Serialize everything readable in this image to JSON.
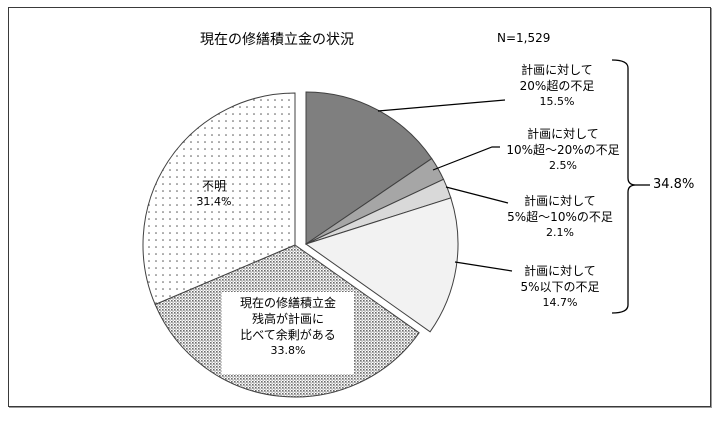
{
  "chart_data": {
    "type": "pie",
    "title": "現在の修繕積立金の状況",
    "sample_size": "N=1,529",
    "slices": [
      {
        "label": "計画に対して20%超の不足",
        "value": 15.5,
        "fill": "#7f7f7f",
        "pattern": "solid",
        "exploded": true
      },
      {
        "label": "計画に対して10%超～20%の不足",
        "value": 2.5,
        "fill": "#a6a6a6",
        "pattern": "solid",
        "exploded": true
      },
      {
        "label": "計画に対して5%超～10%の不足",
        "value": 2.1,
        "fill": "#d9d9d9",
        "pattern": "solid",
        "exploded": true
      },
      {
        "label": "計画に対して5%以下の不足",
        "value": 14.7,
        "fill": "#f2f2f2",
        "pattern": "solid",
        "exploded": true
      },
      {
        "label": "現在の修繕積立金残高が計画に比べて余剰がある",
        "value": 33.8,
        "fill": "#bfbfbf",
        "pattern": "dense-dots",
        "exploded": false
      },
      {
        "label": "不明",
        "value": 31.4,
        "fill": "#ffffff",
        "pattern": "sparse-dots",
        "exploded": false
      }
    ],
    "group_annotation": {
      "label": "34.8%",
      "covers": [
        "計画に対して20%超の不足",
        "計画に対して10%超～20%の不足",
        "計画に対して5%超～10%の不足",
        "計画に対して5%以下の不足"
      ]
    }
  },
  "header": {
    "title": "現在の修繕積立金の状況",
    "n": "N=1,529"
  },
  "labels": {
    "s1": {
      "line1": "計画に対して",
      "line2": "20%超の不足",
      "pct": "15.5%"
    },
    "s2": {
      "line1": "計画に対して",
      "line2": "10%超～20%の不足",
      "pct": "2.5%"
    },
    "s3": {
      "line1": "計画に対して",
      "line2": "5%超～10%の不足",
      "pct": "2.1%"
    },
    "s4": {
      "line1": "計画に対して",
      "line2": "5%以下の不足",
      "pct": "14.7%"
    },
    "surplus": {
      "line1": "現在の修繕積立金",
      "line2": "残高が計画に",
      "line3": "比べて余剰がある",
      "pct": "33.8%"
    },
    "unknown": {
      "line1": "不明",
      "pct": "31.4%"
    },
    "total": "34.8%"
  }
}
